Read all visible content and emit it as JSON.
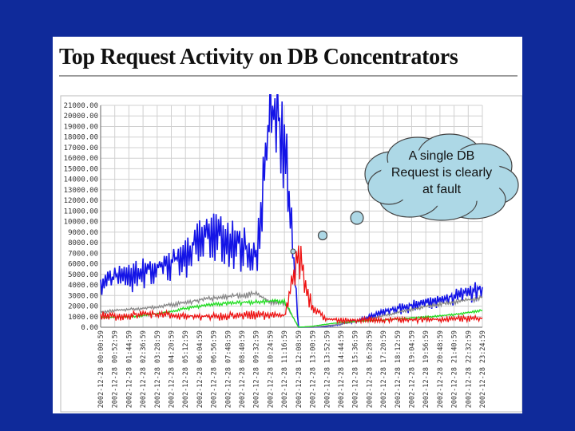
{
  "chart_data": {
    "type": "line",
    "title": "Top Request Activity on DB Concentrators",
    "xlabel": "",
    "ylabel": "",
    "ylim": [
      0,
      21000
    ],
    "y_ticks": [
      "21000.00",
      "20000.00",
      "19000.00",
      "18000.00",
      "17000.00",
      "16000.00",
      "15000.00",
      "14000.00",
      "13000.00",
      "12000.00",
      "11000.00",
      "10000.00",
      "9000.00",
      "8000.00",
      "7000.00",
      "6000.00",
      "5000.00",
      "4000.00",
      "3000.00",
      "2000.00",
      "1000.00",
      "0.00"
    ],
    "x_ticks": [
      "2002-12-28 00:00:59",
      "2002-12-28 00:52:59",
      "2002-12-28 01:44:59",
      "2002-12-28 02:36:59",
      "2002-12-28 03:28:59",
      "2002-12-28 04:20:59",
      "2002-12-28 05:12:59",
      "2002-12-28 06:04:59",
      "2002-12-28 06:56:59",
      "2002-12-28 07:48:59",
      "2002-12-28 08:40:59",
      "2002-12-28 09:32:59",
      "2002-12-28 10:24:59",
      "2002-12-28 11:16:59",
      "2002-12-28 12:08:59",
      "2002-12-28 13:00:59",
      "2002-12-28 13:52:59",
      "2002-12-28 14:44:59",
      "2002-12-28 15:36:59",
      "2002-12-28 16:28:59",
      "2002-12-28 17:20:59",
      "2002-12-28 18:12:59",
      "2002-12-28 19:04:59",
      "2002-12-28 19:56:59",
      "2002-12-28 20:48:59",
      "2002-12-28 21:40:59",
      "2002-12-28 22:32:59",
      "2002-12-28 23:24:59"
    ],
    "grid": true,
    "series": [
      {
        "color": "#1414e6",
        "points": [
          [
            0,
            4500
          ],
          [
            1,
            4800
          ],
          [
            2,
            5000
          ],
          [
            3,
            5400
          ],
          [
            4,
            5800
          ],
          [
            5,
            6200
          ],
          [
            6,
            7000
          ],
          [
            7,
            8500
          ],
          [
            8,
            9000
          ],
          [
            9,
            8600
          ],
          [
            10,
            8000
          ],
          [
            11,
            7000
          ],
          [
            12,
            20500
          ],
          [
            13,
            19000
          ],
          [
            14,
            0
          ],
          [
            15,
            0
          ],
          [
            16,
            100
          ],
          [
            17,
            300
          ],
          [
            18,
            600
          ],
          [
            19,
            1000
          ],
          [
            20,
            1500
          ],
          [
            21,
            1800
          ],
          [
            22,
            2100
          ],
          [
            23,
            2400
          ],
          [
            24,
            2700
          ],
          [
            25,
            3000
          ],
          [
            26,
            3400
          ],
          [
            27,
            3800
          ]
        ]
      },
      {
        "color": "#888888",
        "points": [
          [
            0,
            1500
          ],
          [
            1,
            1600
          ],
          [
            2,
            1700
          ],
          [
            3,
            1800
          ],
          [
            4,
            1950
          ],
          [
            5,
            2150
          ],
          [
            6,
            2350
          ],
          [
            7,
            2600
          ],
          [
            8,
            2800
          ],
          [
            9,
            2950
          ],
          [
            10,
            3050
          ],
          [
            11,
            3200
          ],
          [
            12,
            2400
          ],
          [
            13,
            2400
          ],
          [
            14,
            0
          ],
          [
            15,
            0
          ],
          [
            16,
            150
          ],
          [
            17,
            300
          ],
          [
            18,
            500
          ],
          [
            19,
            800
          ],
          [
            20,
            1100
          ],
          [
            21,
            1400
          ],
          [
            22,
            1700
          ],
          [
            23,
            1950
          ],
          [
            24,
            2200
          ],
          [
            25,
            2400
          ],
          [
            26,
            2600
          ],
          [
            27,
            2900
          ]
        ]
      },
      {
        "color": "#22dd22",
        "points": [
          [
            0,
            900
          ],
          [
            1,
            950
          ],
          [
            2,
            1000
          ],
          [
            3,
            1100
          ],
          [
            4,
            1300
          ],
          [
            5,
            1500
          ],
          [
            6,
            1800
          ],
          [
            7,
            2050
          ],
          [
            8,
            2200
          ],
          [
            9,
            2300
          ],
          [
            10,
            2350
          ],
          [
            11,
            2400
          ],
          [
            12,
            2450
          ],
          [
            13,
            2500
          ],
          [
            14,
            0
          ],
          [
            15,
            100
          ],
          [
            16,
            300
          ],
          [
            17,
            450
          ],
          [
            18,
            550
          ],
          [
            19,
            600
          ],
          [
            20,
            700
          ],
          [
            21,
            800
          ],
          [
            22,
            900
          ],
          [
            23,
            1000
          ],
          [
            24,
            1100
          ],
          [
            25,
            1200
          ],
          [
            26,
            1400
          ],
          [
            27,
            1600
          ]
        ]
      },
      {
        "color": "#ee1111",
        "points": [
          [
            0,
            1200
          ],
          [
            1,
            1100
          ],
          [
            2,
            1150
          ],
          [
            3,
            1300
          ],
          [
            4,
            1250
          ],
          [
            5,
            1200
          ],
          [
            6,
            1100
          ],
          [
            7,
            1050
          ],
          [
            8,
            1100
          ],
          [
            9,
            1150
          ],
          [
            10,
            1200
          ],
          [
            11,
            1300
          ],
          [
            12,
            1200
          ],
          [
            13,
            1100
          ],
          [
            14,
            7000
          ],
          [
            15,
            1800
          ],
          [
            16,
            800
          ],
          [
            17,
            700
          ],
          [
            18,
            700
          ],
          [
            19,
            800
          ],
          [
            20,
            700
          ],
          [
            21,
            800
          ],
          [
            22,
            700
          ],
          [
            23,
            800
          ],
          [
            24,
            750
          ],
          [
            25,
            900
          ],
          [
            26,
            850
          ],
          [
            27,
            900
          ]
        ]
      }
    ]
  },
  "callout": {
    "text_lines": [
      "A single DB",
      "Request is clearly",
      "at fault"
    ],
    "fill": "#add8e6",
    "stroke": "#444444"
  }
}
